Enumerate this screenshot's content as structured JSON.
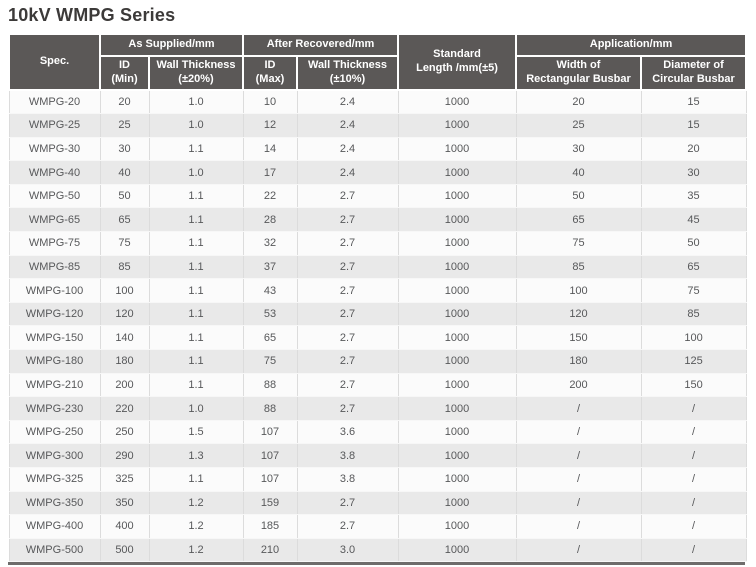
{
  "title": "10kV WMPG Series",
  "colors": {
    "header_bg": "#5b5857",
    "header_text": "#ffffff",
    "row_odd_bg": "#fbfbfb",
    "row_even_bg": "#e9e9e9",
    "bottom_border": "#6e6c6b",
    "cell_text": "#57585a",
    "title_text": "#3c3a39"
  },
  "header": {
    "spec": "Spec.",
    "as_supplied": "As Supplied/mm",
    "id_min": "ID\n(Min)",
    "wall_thickness_20": "Wall Thickness\n(±20%)",
    "after_recovered": "After Recovered/mm",
    "id_max": "ID\n(Max)",
    "wall_thickness_10": "Wall Thickness\n(±10%)",
    "standard_length": "Standard\nLength /mm(±5)",
    "application": "Application/mm",
    "width_rectangular": "Width of\nRectangular Busbar",
    "diameter_circular": "Diameter of\nCircular Busbar"
  },
  "table": {
    "columns": [
      "Spec.",
      "ID (Min)",
      "Wall Thickness (±20%)",
      "ID (Max)",
      "Wall Thickness (±10%)",
      "Standard Length /mm(±5)",
      "Width of Rectangular Busbar",
      "Diameter of Circular Busbar"
    ],
    "rows": [
      [
        "WMPG-20",
        "20",
        "1.0",
        "10",
        "2.4",
        "1000",
        "20",
        "15"
      ],
      [
        "WMPG-25",
        "25",
        "1.0",
        "12",
        "2.4",
        "1000",
        "25",
        "15"
      ],
      [
        "WMPG-30",
        "30",
        "1.1",
        "14",
        "2.4",
        "1000",
        "30",
        "20"
      ],
      [
        "WMPG-40",
        "40",
        "1.0",
        "17",
        "2.4",
        "1000",
        "40",
        "30"
      ],
      [
        "WMPG-50",
        "50",
        "1.1",
        "22",
        "2.7",
        "1000",
        "50",
        "35"
      ],
      [
        "WMPG-65",
        "65",
        "1.1",
        "28",
        "2.7",
        "1000",
        "65",
        "45"
      ],
      [
        "WMPG-75",
        "75",
        "1.1",
        "32",
        "2.7",
        "1000",
        "75",
        "50"
      ],
      [
        "WMPG-85",
        "85",
        "1.1",
        "37",
        "2.7",
        "1000",
        "85",
        "65"
      ],
      [
        "WMPG-100",
        "100",
        "1.1",
        "43",
        "2.7",
        "1000",
        "100",
        "75"
      ],
      [
        "WMPG-120",
        "120",
        "1.1",
        "53",
        "2.7",
        "1000",
        "120",
        "85"
      ],
      [
        "WMPG-150",
        "140",
        "1.1",
        "65",
        "2.7",
        "1000",
        "150",
        "100"
      ],
      [
        "WMPG-180",
        "180",
        "1.1",
        "75",
        "2.7",
        "1000",
        "180",
        "125"
      ],
      [
        "WMPG-210",
        "200",
        "1.1",
        "88",
        "2.7",
        "1000",
        "200",
        "150"
      ],
      [
        "WMPG-230",
        "220",
        "1.0",
        "88",
        "2.7",
        "1000",
        "/",
        "/"
      ],
      [
        "WMPG-250",
        "250",
        "1.5",
        "107",
        "3.6",
        "1000",
        "/",
        "/"
      ],
      [
        "WMPG-300",
        "290",
        "1.3",
        "107",
        "3.8",
        "1000",
        "/",
        "/"
      ],
      [
        "WMPG-325",
        "325",
        "1.1",
        "107",
        "3.8",
        "1000",
        "/",
        "/"
      ],
      [
        "WMPG-350",
        "350",
        "1.2",
        "159",
        "2.7",
        "1000",
        "/",
        "/"
      ],
      [
        "WMPG-400",
        "400",
        "1.2",
        "185",
        "2.7",
        "1000",
        "/",
        "/"
      ],
      [
        "WMPG-500",
        "500",
        "1.2",
        "210",
        "3.0",
        "1000",
        "/",
        "/"
      ]
    ]
  }
}
